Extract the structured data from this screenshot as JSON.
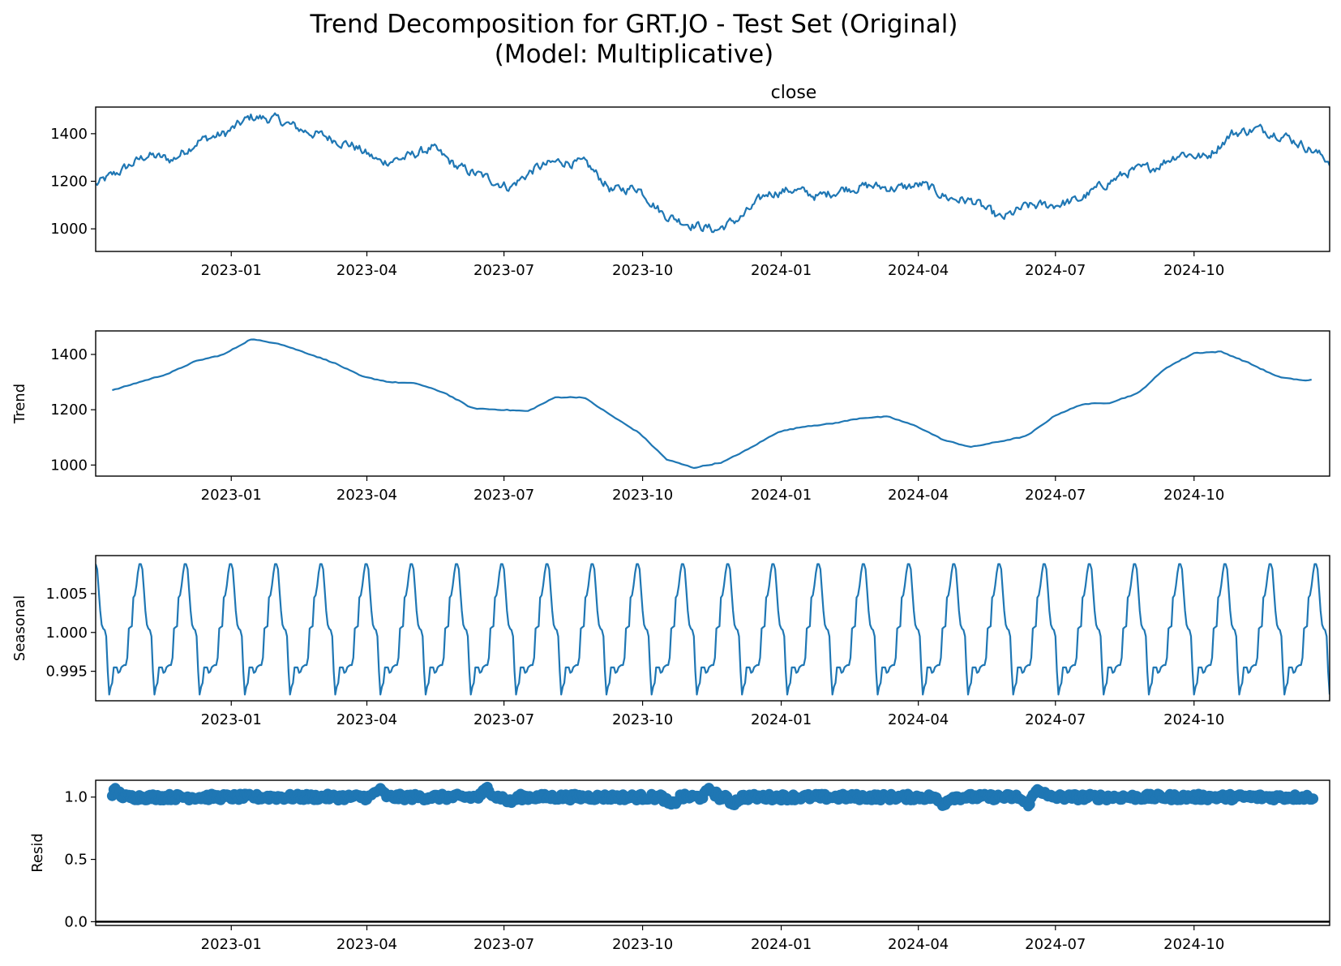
{
  "figure": {
    "title_line1": "Trend Decomposition for GRT.JO - Test Set (Original)",
    "title_line2": "(Model: Multiplicative)"
  },
  "colors": {
    "series": "#1f77b4",
    "axis": "#000000",
    "zero_line": "#000000"
  },
  "chart_data": [
    {
      "type": "line",
      "title": "close",
      "ylabel": "",
      "x_start": "2022-10-03",
      "x_end": "2024-12-30",
      "xlim": [
        "2022-10-03",
        "2024-12-30"
      ],
      "ylim": [
        905,
        1512
      ],
      "xticks": [
        "2023-01",
        "2023-04",
        "2023-07",
        "2023-10",
        "2024-01",
        "2024-04",
        "2024-07",
        "2024-10"
      ],
      "yticks": [
        1000,
        1200,
        1400
      ],
      "grid": false,
      "x": [
        "2022-10-03",
        "2022-10-20",
        "2022-11-06",
        "2022-11-23",
        "2022-12-10",
        "2022-12-28",
        "2023-01-14",
        "2023-01-31",
        "2023-02-17",
        "2023-03-06",
        "2023-03-23",
        "2023-04-10",
        "2023-04-27",
        "2023-05-14",
        "2023-05-31",
        "2023-06-17",
        "2023-07-05",
        "2023-07-22",
        "2023-08-08",
        "2023-08-25",
        "2023-09-11",
        "2023-09-28",
        "2023-10-15",
        "2023-11-02",
        "2023-11-19",
        "2023-12-06",
        "2023-12-23",
        "2024-01-09",
        "2024-01-26",
        "2024-02-12",
        "2024-02-29",
        "2024-03-18",
        "2024-04-04",
        "2024-04-21",
        "2024-05-08",
        "2024-05-26",
        "2024-06-12",
        "2024-06-29",
        "2024-07-16",
        "2024-08-02",
        "2024-08-19",
        "2024-09-05",
        "2024-09-22",
        "2024-10-09",
        "2024-10-26",
        "2024-11-12",
        "2024-11-29",
        "2024-12-16",
        "2024-12-30"
      ],
      "values": [
        1185,
        1245,
        1310,
        1290,
        1370,
        1400,
        1470,
        1460,
        1415,
        1385,
        1350,
        1280,
        1300,
        1340,
        1260,
        1220,
        1175,
        1255,
        1285,
        1270,
        1160,
        1175,
        1060,
        1020,
        995,
        1050,
        1150,
        1165,
        1135,
        1170,
        1180,
        1170,
        1185,
        1130,
        1115,
        1040,
        1095,
        1100,
        1120,
        1185,
        1240,
        1260,
        1320,
        1300,
        1400,
        1420,
        1395,
        1340,
        1285
      ],
      "series": [
        {
          "name": ""
        }
      ]
    },
    {
      "type": "line",
      "title": "",
      "ylabel": "Trend",
      "x_start": "2022-10-14",
      "x_end": "2024-12-19",
      "xlim": [
        "2022-10-03",
        "2024-12-30"
      ],
      "ylim": [
        960,
        1485
      ],
      "xticks": [
        "2023-01",
        "2023-04",
        "2023-07",
        "2023-10",
        "2024-01",
        "2024-04",
        "2024-07",
        "2024-10"
      ],
      "yticks": [
        1000,
        1200,
        1400
      ],
      "grid": false,
      "x": [
        "2022-10-14",
        "2022-11-01",
        "2022-11-20",
        "2022-12-08",
        "2022-12-27",
        "2023-01-14",
        "2023-02-01",
        "2023-02-20",
        "2023-03-10",
        "2023-03-29",
        "2023-04-16",
        "2023-05-04",
        "2023-05-23",
        "2023-06-10",
        "2023-06-29",
        "2023-07-17",
        "2023-08-04",
        "2023-08-23",
        "2023-09-10",
        "2023-09-29",
        "2023-10-17",
        "2023-11-04",
        "2023-11-23",
        "2023-12-11",
        "2023-12-30",
        "2024-01-17",
        "2024-02-04",
        "2024-02-23",
        "2024-03-12",
        "2024-03-31",
        "2024-04-18",
        "2024-05-06",
        "2024-05-25",
        "2024-06-12",
        "2024-07-01",
        "2024-07-19",
        "2024-08-06",
        "2024-08-25",
        "2024-09-12",
        "2024-10-01",
        "2024-10-19",
        "2024-11-06",
        "2024-11-25",
        "2024-12-13",
        "2024-12-19"
      ],
      "values": [
        1270,
        1300,
        1330,
        1375,
        1400,
        1455,
        1440,
        1405,
        1370,
        1320,
        1300,
        1295,
        1260,
        1205,
        1200,
        1195,
        1245,
        1245,
        1180,
        1115,
        1020,
        990,
        1010,
        1060,
        1120,
        1140,
        1150,
        1170,
        1175,
        1140,
        1090,
        1065,
        1085,
        1105,
        1180,
        1220,
        1225,
        1260,
        1350,
        1405,
        1410,
        1370,
        1320,
        1305,
        1310
      ],
      "series": [
        {
          "name": ""
        }
      ]
    },
    {
      "type": "line",
      "title": "",
      "ylabel": "Seasonal",
      "x_start": "2022-10-03",
      "x_end": "2024-12-30",
      "xlim": [
        "2022-10-03",
        "2024-12-30"
      ],
      "ylim": [
        0.9912,
        1.0099
      ],
      "xticks": [
        "2023-01",
        "2023-04",
        "2023-07",
        "2023-10",
        "2024-01",
        "2024-04",
        "2024-07",
        "2024-10"
      ],
      "yticks": [
        0.995,
        1.0,
        1.005
      ],
      "ytick_labels": [
        "0.995",
        "1.000",
        "1.005"
      ],
      "grid": false,
      "period_days": 30,
      "num_cycles": 27,
      "cycle_shape": [
        1.0088,
        1.0055,
        1.001,
        1.0005,
        0.9995,
        0.992,
        0.993,
        0.9955,
        0.9955,
        0.9948,
        0.9955,
        0.9958,
        0.9958,
        1.0005,
        1.0008,
        1.0045,
        1.006,
        1.0088
      ],
      "series": [
        {
          "name": ""
        }
      ]
    },
    {
      "type": "scatter",
      "title": "",
      "ylabel": "Resid",
      "x_start": "2022-10-14",
      "x_end": "2024-12-19",
      "xlim": [
        "2022-10-03",
        "2024-12-30"
      ],
      "ylim": [
        -0.03,
        1.135
      ],
      "xticks": [
        "2023-01",
        "2023-04",
        "2023-07",
        "2023-10",
        "2024-01",
        "2024-04",
        "2024-07",
        "2024-10"
      ],
      "yticks": [
        0.0,
        0.5,
        1.0
      ],
      "ytick_labels": [
        "0.0",
        "0.5",
        "1.0"
      ],
      "grid": false,
      "hline": 0,
      "values_summary": {
        "center": 1.0,
        "min": 0.93,
        "max": 1.07
      },
      "notable_points": [
        {
          "x": "2022-10-16",
          "y": 1.05
        },
        {
          "x": "2023-04-09",
          "y": 1.06
        },
        {
          "x": "2023-06-20",
          "y": 1.07
        },
        {
          "x": "2023-07-05",
          "y": 0.96
        },
        {
          "x": "2023-10-20",
          "y": 0.93
        },
        {
          "x": "2023-11-15",
          "y": 1.06
        },
        {
          "x": "2023-11-30",
          "y": 0.95
        },
        {
          "x": "2024-04-17",
          "y": 0.94
        },
        {
          "x": "2024-06-12",
          "y": 0.94
        },
        {
          "x": "2024-06-20",
          "y": 1.07
        }
      ],
      "series": [
        {
          "name": ""
        }
      ]
    }
  ]
}
